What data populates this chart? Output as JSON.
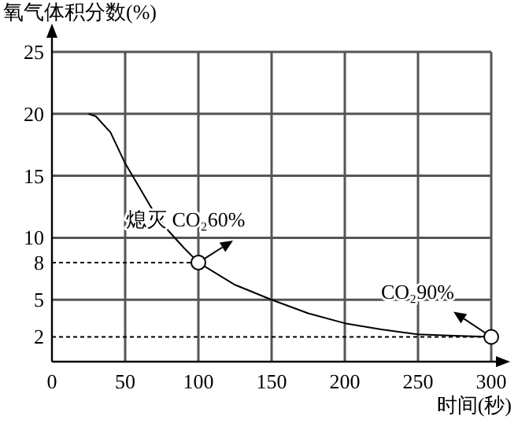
{
  "chart_data": {
    "type": "line",
    "ylabel": "氧气体积分数(%)",
    "xlabel": "时间(秒)",
    "xlim": [
      0,
      300
    ],
    "xticks": [
      0,
      50,
      100,
      150,
      200,
      250,
      300
    ],
    "ylim": [
      0,
      25
    ],
    "yticks": [
      2,
      5,
      8,
      10,
      15,
      20,
      25
    ],
    "grid": true,
    "series": [
      {
        "color": "#000000",
        "x": [
          25,
          30,
          40,
          50,
          60,
          70,
          80,
          90,
          100,
          125,
          150,
          175,
          200,
          225,
          250,
          275,
          300
        ],
        "values": [
          20,
          19.8,
          18.5,
          16,
          14,
          12,
          10.5,
          9.2,
          8,
          6.2,
          5,
          3.9,
          3.1,
          2.6,
          2.2,
          2.1,
          2
        ]
      },
      {
        "type": "line",
        "color": "#000000",
        "line_style": "dashed",
        "x": [
          0,
          100
        ],
        "values": [
          8,
          8
        ]
      },
      {
        "type": "line",
        "color": "#000000",
        "line_style": "dashed",
        "x": [
          0,
          300
        ],
        "values": [
          2,
          2
        ]
      },
      {
        "type": "scatter",
        "color": "#000000",
        "marker": "circle",
        "x": [
          100,
          300
        ],
        "values": [
          8,
          2
        ]
      }
    ],
    "annotations": [
      {
        "text": "熄灭 CO₂60%",
        "x": 100,
        "y": 8
      },
      {
        "text": "CO₂90%",
        "x": 300,
        "y": 2
      }
    ]
  }
}
